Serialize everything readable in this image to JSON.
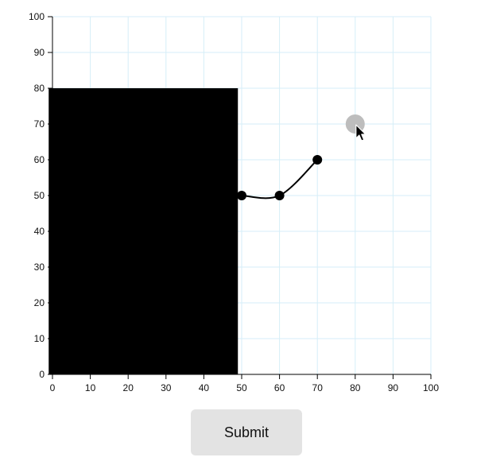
{
  "chart_data": {
    "type": "line",
    "xlim": [
      0,
      100
    ],
    "ylim": [
      0,
      100
    ],
    "x_ticks": [
      0,
      10,
      20,
      30,
      40,
      50,
      60,
      70,
      80,
      90,
      100
    ],
    "y_ticks": [
      0,
      10,
      20,
      30,
      40,
      50,
      60,
      70,
      80,
      90,
      100
    ],
    "grid": true,
    "grid_color": "#d6eef8",
    "series": [
      {
        "points": [
          {
            "x": 50,
            "y": 50
          },
          {
            "x": 60,
            "y": 50
          },
          {
            "x": 70,
            "y": 60
          }
        ],
        "color": "#000000",
        "interpolation": "smooth"
      }
    ],
    "occluding_rectangle": {
      "x_range": [
        -1,
        49
      ],
      "y_range": [
        0,
        80
      ],
      "color": "#000000"
    },
    "pending_point": {
      "x": 80,
      "y": 70,
      "color": "#bdbdbd"
    },
    "cursor_icon": "mouse-pointer-icon"
  },
  "submit": {
    "label": "Submit"
  }
}
